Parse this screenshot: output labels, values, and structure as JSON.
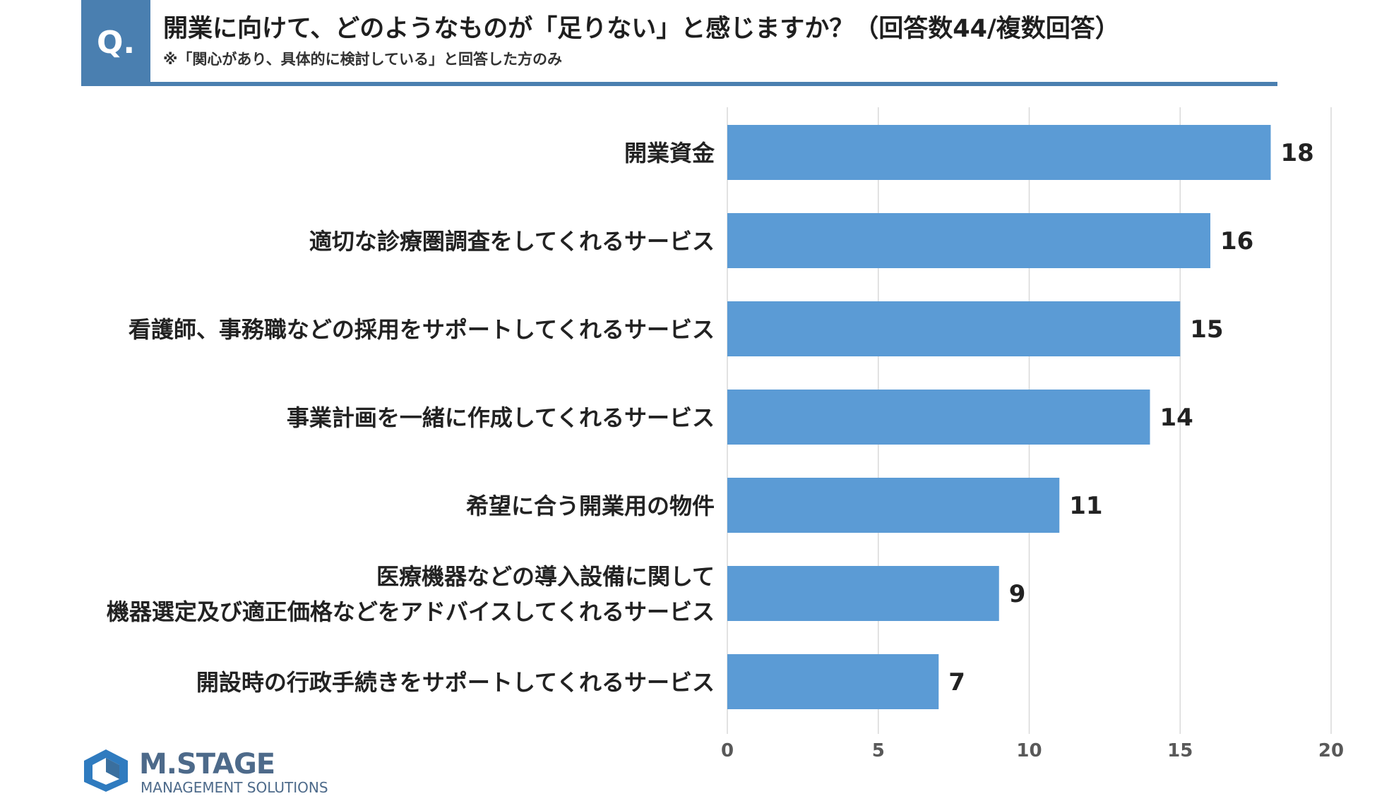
{
  "header": {
    "q_label": "Q.",
    "title": "開業に向けて、どのようなものが「足りない」と感じますか？（回答数44/複数回答）",
    "subtitle": "※「関心があり、具体的に検討している」と回答した方のみ"
  },
  "logo": {
    "name": "M.STAGE",
    "tagline": "MANAGEMENT SOLUTIONS"
  },
  "colors": {
    "accent": "#4a7fb0",
    "bar": "#5b9bd5",
    "grid": "#d9d9d9",
    "axis_text": "#595959"
  },
  "chart_data": {
    "type": "bar",
    "orientation": "horizontal",
    "categories": [
      [
        "開業資金"
      ],
      [
        "適切な診療圏調査をしてくれるサービス"
      ],
      [
        "看護師、事務職などの採用をサポートしてくれるサービス"
      ],
      [
        "事業計画を一緒に作成してくれるサービス"
      ],
      [
        "希望に合う開業用の物件"
      ],
      [
        "医療機器などの導入設備に関して",
        "機器選定及び適正価格などをアドバイスしてくれるサービス"
      ],
      [
        "開設時の行政手続きをサポートしてくれるサービス"
      ]
    ],
    "values": [
      18,
      16,
      15,
      14,
      11,
      9,
      7
    ],
    "xlim": [
      0,
      20
    ],
    "xticks": [
      "0",
      "5",
      "10",
      "15",
      "20"
    ],
    "grid": true,
    "data_labels": true
  }
}
